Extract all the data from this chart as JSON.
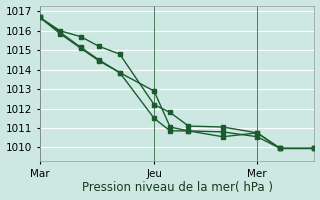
{
  "xlabel": "Pression niveau de la mer( hPa )",
  "background_color": "#cde8e2",
  "grid_color": "#ffffff",
  "line_color": "#1a5c2e",
  "vline_color": "#4a7a5a",
  "ylim": [
    1009.3,
    1017.3
  ],
  "yticks": [
    1010,
    1011,
    1012,
    1013,
    1014,
    1015,
    1016,
    1017
  ],
  "xlim": [
    0,
    12
  ],
  "xtick_positions": [
    0,
    5,
    9.5
  ],
  "xtick_labels": [
    "Mar",
    "Jeu",
    "Mer"
  ],
  "vlines_x": [
    0,
    5,
    9.5
  ],
  "series1_x": [
    0,
    0.9,
    1.8,
    2.6,
    3.5,
    5.0,
    5.7,
    6.5,
    8.0,
    9.5,
    10.5,
    12.0
  ],
  "series1_y": [
    1016.7,
    1016.0,
    1015.7,
    1015.2,
    1014.8,
    1012.2,
    1011.8,
    1011.1,
    1011.05,
    1010.75,
    1009.95,
    1009.95
  ],
  "series2_x": [
    0,
    1.8,
    2.6,
    3.5,
    5.0,
    5.7,
    6.5,
    8.0,
    9.5,
    10.5,
    12.0
  ],
  "series2_y": [
    1016.7,
    1015.15,
    1014.5,
    1013.85,
    1012.9,
    1011.05,
    1010.85,
    1010.8,
    1010.55,
    1009.95,
    1009.95
  ],
  "series3_x": [
    0,
    0.9,
    1.8,
    2.6,
    3.5,
    5.0,
    5.7,
    6.5,
    8.0,
    9.5,
    10.5,
    12.0
  ],
  "series3_y": [
    1016.7,
    1015.85,
    1015.1,
    1014.45,
    1013.85,
    1011.5,
    1010.85,
    1010.85,
    1010.55,
    1010.75,
    1009.95,
    1009.95
  ],
  "marker_size": 2.5,
  "line_width": 1.0,
  "font_size_xlabel": 8.5,
  "font_size_ticks": 7.5
}
